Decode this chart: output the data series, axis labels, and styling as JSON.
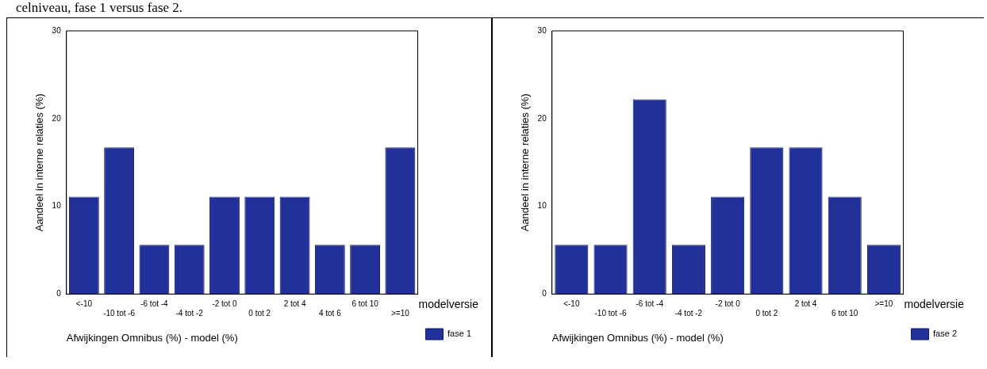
{
  "chart_data": [
    {
      "type": "bar",
      "annotations": [
        "celniveau, fase 1 versus fase 2."
      ],
      "xlabel": "Afwijkingen Omnibus (%) - model (%)",
      "ylabel": "Aandeel in interne relaties (%)",
      "legend_title": "modelversie",
      "legend": "right",
      "categories": [
        "<-10",
        "-10 tot -6",
        "-6 tot -4",
        "-4 tot -2",
        "-2 tot 0",
        "0 tot 2",
        "2 tot 4",
        "4 tot 6",
        "6 tot 10",
        ">=10"
      ],
      "series": [
        {
          "name": "fase 1",
          "color": "#22309a",
          "values": [
            11.1,
            16.7,
            5.6,
            5.6,
            11.1,
            11.1,
            11.1,
            5.6,
            5.6,
            16.7
          ]
        }
      ],
      "ylim": [
        0,
        30
      ],
      "yticks": [
        0,
        10,
        20,
        30
      ],
      "grid": false
    },
    {
      "type": "bar",
      "xlabel": "Afwijkingen Omnibus (%) - model (%)",
      "ylabel": "Aandeel in interne relaties (%)",
      "legend_title": "modelversie",
      "legend": "right",
      "categories": [
        "<-10",
        "-10 tot -6",
        "-6 tot -4",
        "-4 tot -2",
        "-2 tot 0",
        "0 tot 2",
        "2 tot 4",
        "6 tot 10",
        ">=10"
      ],
      "series": [
        {
          "name": "fase 2",
          "color": "#22309a",
          "values": [
            5.6,
            5.6,
            22.2,
            5.6,
            11.1,
            16.7,
            16.7,
            11.1,
            5.6
          ]
        }
      ],
      "ylim": [
        0,
        30
      ],
      "yticks": [
        0,
        10,
        20,
        30
      ],
      "grid": false
    }
  ]
}
